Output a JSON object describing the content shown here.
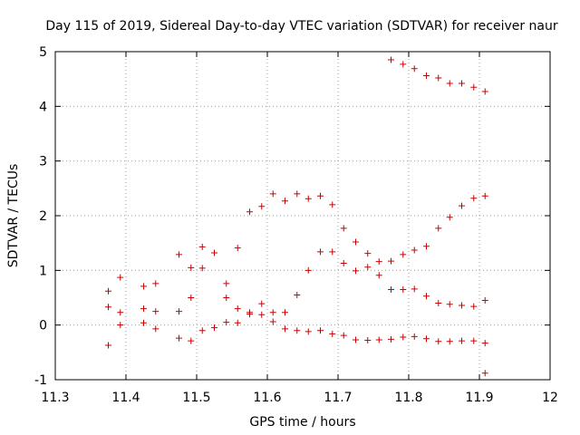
{
  "chart_data": {
    "type": "scatter",
    "title": "Day 115 of 2019, Sidereal Day-to-day VTEC variation (SDTVAR) for receiver naur",
    "xlabel": "GPS time / hours",
    "ylabel": "SDTVAR / TECUs",
    "xlim": [
      11.3,
      12
    ],
    "ylim": [
      -1,
      5
    ],
    "xticks": [
      11.3,
      11.4,
      11.5,
      11.6,
      11.7,
      11.8,
      11.9,
      12
    ],
    "yticks": [
      -1,
      0,
      1,
      2,
      3,
      4,
      5
    ],
    "xtick_labels": [
      "11.3",
      "11.4",
      "11.5",
      "11.6",
      "11.7",
      "11.8",
      "11.9",
      "12"
    ],
    "ytick_labels": [
      "-1",
      "0",
      "1",
      "2",
      "3",
      "4",
      "5"
    ],
    "grid": true,
    "marker": "plus",
    "color": "#cc0000",
    "points": [
      [
        11.375,
        0.62
      ],
      [
        11.375,
        0.33
      ],
      [
        11.375,
        -0.37
      ],
      [
        11.392,
        0.87
      ],
      [
        11.392,
        0.23
      ],
      [
        11.392,
        0.0
      ],
      [
        11.425,
        0.71
      ],
      [
        11.425,
        0.3
      ],
      [
        11.425,
        0.04
      ],
      [
        11.442,
        0.76
      ],
      [
        11.442,
        0.25
      ],
      [
        11.442,
        -0.07
      ],
      [
        11.475,
        1.29
      ],
      [
        11.475,
        0.25
      ],
      [
        11.475,
        -0.24
      ],
      [
        11.492,
        1.05
      ],
      [
        11.492,
        0.5
      ],
      [
        11.492,
        -0.29
      ],
      [
        11.508,
        1.43
      ],
      [
        11.508,
        1.04
      ],
      [
        11.508,
        -0.1
      ],
      [
        11.525,
        1.32
      ],
      [
        11.525,
        -0.05
      ],
      [
        11.542,
        0.76
      ],
      [
        11.542,
        0.5
      ],
      [
        11.542,
        0.05
      ],
      [
        11.558,
        1.41
      ],
      [
        11.558,
        0.3
      ],
      [
        11.558,
        0.04
      ],
      [
        11.575,
        2.07
      ],
      [
        11.575,
        0.23
      ],
      [
        11.575,
        0.2
      ],
      [
        11.592,
        2.17
      ],
      [
        11.592,
        0.39
      ],
      [
        11.592,
        0.19
      ],
      [
        11.608,
        2.4
      ],
      [
        11.608,
        0.23
      ],
      [
        11.608,
        0.06
      ],
      [
        11.625,
        2.27
      ],
      [
        11.625,
        0.23
      ],
      [
        11.625,
        -0.07
      ],
      [
        11.642,
        2.4
      ],
      [
        11.642,
        0.55
      ],
      [
        11.642,
        -0.1
      ],
      [
        11.658,
        2.31
      ],
      [
        11.658,
        1.0
      ],
      [
        11.658,
        -0.12
      ],
      [
        11.675,
        2.36
      ],
      [
        11.675,
        1.34
      ],
      [
        11.675,
        -0.1
      ],
      [
        11.692,
        2.2
      ],
      [
        11.692,
        1.34
      ],
      [
        11.692,
        -0.16
      ],
      [
        11.708,
        1.77
      ],
      [
        11.708,
        1.13
      ],
      [
        11.708,
        -0.19
      ],
      [
        11.725,
        1.52
      ],
      [
        11.725,
        0.99
      ],
      [
        11.725,
        -0.27
      ],
      [
        11.742,
        1.31
      ],
      [
        11.742,
        1.06
      ],
      [
        11.742,
        -0.28
      ],
      [
        11.758,
        1.16
      ],
      [
        11.758,
        0.91
      ],
      [
        11.758,
        -0.27
      ],
      [
        11.775,
        4.85
      ],
      [
        11.775,
        1.17
      ],
      [
        11.775,
        0.65
      ],
      [
        11.775,
        -0.26
      ],
      [
        11.792,
        4.77
      ],
      [
        11.792,
        1.29
      ],
      [
        11.792,
        0.65
      ],
      [
        11.792,
        -0.22
      ],
      [
        11.808,
        4.69
      ],
      [
        11.808,
        1.37
      ],
      [
        11.808,
        0.66
      ],
      [
        11.808,
        -0.21
      ],
      [
        11.825,
        4.56
      ],
      [
        11.825,
        1.44
      ],
      [
        11.825,
        0.53
      ],
      [
        11.825,
        -0.25
      ],
      [
        11.842,
        4.52
      ],
      [
        11.842,
        1.77
      ],
      [
        11.842,
        0.4
      ],
      [
        11.842,
        -0.3
      ],
      [
        11.858,
        4.42
      ],
      [
        11.858,
        1.97
      ],
      [
        11.858,
        0.38
      ],
      [
        11.858,
        -0.3
      ],
      [
        11.875,
        4.42
      ],
      [
        11.875,
        2.18
      ],
      [
        11.875,
        0.36
      ],
      [
        11.875,
        -0.29
      ],
      [
        11.892,
        4.35
      ],
      [
        11.892,
        2.32
      ],
      [
        11.892,
        0.34
      ],
      [
        11.892,
        -0.29
      ],
      [
        11.908,
        4.27
      ],
      [
        11.908,
        2.36
      ],
      [
        11.908,
        0.45
      ],
      [
        11.908,
        -0.33
      ],
      [
        11.908,
        -0.88
      ]
    ]
  }
}
